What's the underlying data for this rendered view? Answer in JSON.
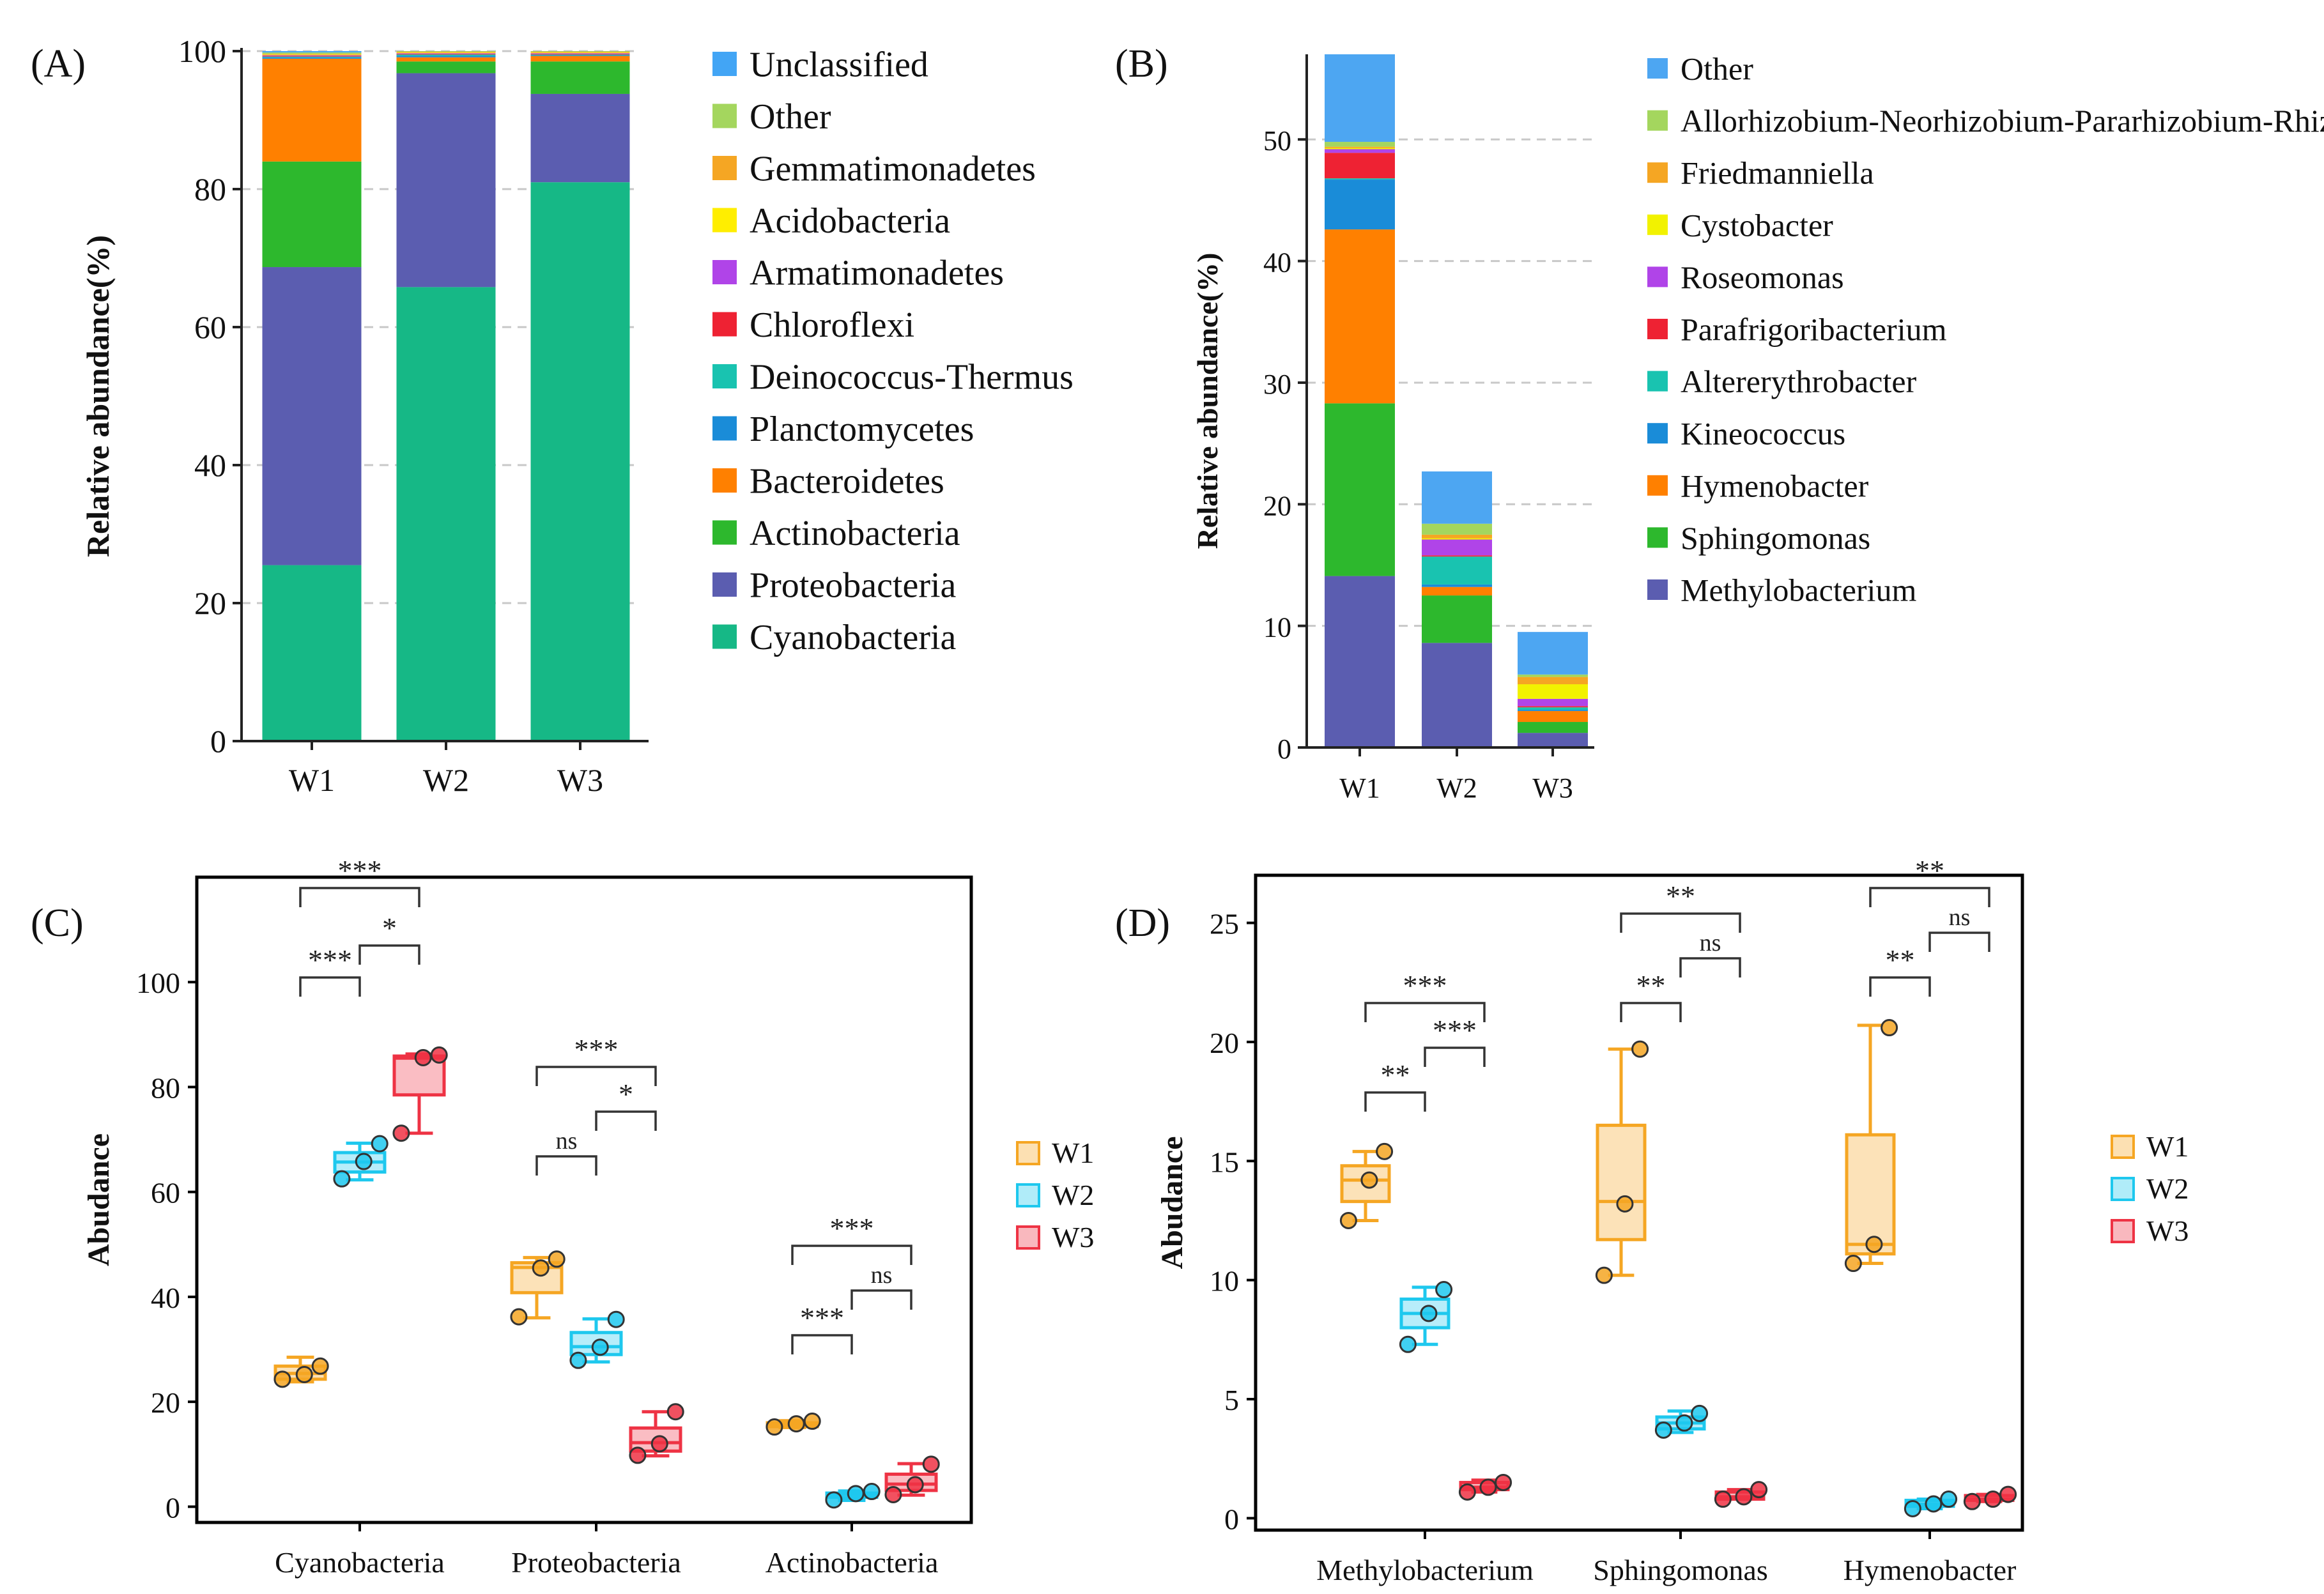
{
  "colors": {
    "Unclassified": "#42a5f5",
    "Other": "#a4d65e",
    "Gemmatimonadetes": "#f5a623",
    "Acidobacteria": "#ffee00",
    "Armatimonadetes": "#b044e8",
    "Chloroflexi": "#ee2233",
    "Deinococcus-Thermus": "#19c3b0",
    "Planctomycetes": "#1a8cd8",
    "Bacteroidetes": "#ff8000",
    "Actinobacteria": "#2db82d",
    "Proteobacteria": "#5b5db0",
    "Cyanobacteria": "#16b886",
    "Other_B": "#4da6f2",
    "Allorhizobium": "#a4d65e",
    "Friedmanniella": "#f5a623",
    "Cystobacter": "#f2f200",
    "Roseomonas": "#b044e8",
    "Parafrigoribacterium": "#ee2233",
    "Altererythrobacter": "#19c3b0",
    "Kineococcus": "#1a8cd8",
    "Hymenobacter": "#ff8000",
    "Sphingomonas": "#2db82d",
    "Methylobacterium": "#5b5db0",
    "W1": "#f5a623",
    "W2": "#1ec8ee",
    "W3": "#ee3344"
  },
  "chart_data": [
    {
      "panel": "(A)",
      "type": "bar",
      "stacked": true,
      "categories": [
        "W1",
        "W2",
        "W3"
      ],
      "ylabel": "Relative abundance(%)",
      "ylim": [
        0,
        100
      ],
      "yticks": [
        "0",
        "20",
        "40",
        "60",
        "80",
        "100"
      ],
      "series": [
        {
          "name": "Cyanobacteria",
          "values": [
            25.5,
            65.8,
            81.0
          ]
        },
        {
          "name": "Proteobacteria",
          "values": [
            43.2,
            31.0,
            12.8
          ]
        },
        {
          "name": "Actinobacteria",
          "values": [
            15.3,
            1.7,
            4.7
          ]
        },
        {
          "name": "Bacteroidetes",
          "values": [
            14.9,
            0.6,
            0.8
          ]
        },
        {
          "name": "Planctomycetes",
          "values": [
            0.2,
            0.2,
            0.1
          ]
        },
        {
          "name": "Deinococcus-Thermus",
          "values": [
            0.1,
            0.2,
            0.1
          ]
        },
        {
          "name": "Chloroflexi",
          "values": [
            0.1,
            0.1,
            0.1
          ]
        },
        {
          "name": "Armatimonadetes",
          "values": [
            0.1,
            0.1,
            0.1
          ]
        },
        {
          "name": "Acidobacteria",
          "values": [
            0.1,
            0.1,
            0.1
          ]
        },
        {
          "name": "Gemmatimonadetes",
          "values": [
            0.1,
            0.1,
            0.1
          ]
        },
        {
          "name": "Other",
          "values": [
            0.2,
            0.1,
            0.1
          ]
        },
        {
          "name": "Unclassified",
          "values": [
            0.2,
            0.0,
            0.0
          ]
        }
      ],
      "legend": [
        "Unclassified",
        "Other",
        "Gemmatimonadetes",
        "Acidobacteria",
        "Armatimonadetes",
        "Chloroflexi",
        "Deinococcus-Thermus",
        "Planctomycetes",
        "Bacteroidetes",
        "Actinobacteria",
        "Proteobacteria",
        "Cyanobacteria"
      ]
    },
    {
      "panel": "(B)",
      "type": "bar",
      "stacked": true,
      "categories": [
        "W1",
        "W2",
        "W3"
      ],
      "ylabel": "Relative abundance(%)",
      "ylim": [
        0,
        57
      ],
      "yticks": [
        "0",
        "10",
        "20",
        "30",
        "40",
        "50"
      ],
      "series": [
        {
          "name": "Methylobacterium",
          "key": "Methylobacterium",
          "values": [
            14.1,
            8.6,
            1.2
          ]
        },
        {
          "name": "Sphingomonas",
          "key": "Sphingomonas",
          "values": [
            14.2,
            3.9,
            0.9
          ]
        },
        {
          "name": "Hymenobacter",
          "key": "Hymenobacter",
          "values": [
            14.3,
            0.7,
            0.9
          ]
        },
        {
          "name": "Kineococcus",
          "key": "Kineococcus",
          "values": [
            4.1,
            0.2,
            0.1
          ]
        },
        {
          "name": "Altererythrobacter",
          "key": "Altererythrobacter",
          "values": [
            0.1,
            2.3,
            0.2
          ]
        },
        {
          "name": "Parafrigoribacterium",
          "key": "Parafrigoribacterium",
          "values": [
            2.1,
            0.1,
            0.1
          ]
        },
        {
          "name": "Roseomonas",
          "key": "Roseomonas",
          "values": [
            0.3,
            1.3,
            0.6
          ]
        },
        {
          "name": "Cystobacter",
          "key": "Cystobacter",
          "values": [
            0.1,
            0.1,
            1.2
          ]
        },
        {
          "name": "Friedmanniella",
          "key": "Friedmanniella",
          "values": [
            0.1,
            0.3,
            0.6
          ]
        },
        {
          "name": "Allorhizobium-Neorhizobium-Pararhizobium-Rhizobium",
          "key": "Allorhizobium",
          "values": [
            0.4,
            0.9,
            0.2
          ]
        },
        {
          "name": "Other",
          "key": "Other_B",
          "values": [
            7.2,
            4.3,
            3.5
          ]
        }
      ],
      "legend": [
        {
          "name": "Other",
          "key": "Other_B"
        },
        {
          "name": "Allorhizobium-Neorhizobium-Pararhizobium-Rhizobium",
          "key": "Allorhizobium"
        },
        {
          "name": "Friedmanniella",
          "key": "Friedmanniella"
        },
        {
          "name": "Cystobacter",
          "key": "Cystobacter"
        },
        {
          "name": "Roseomonas",
          "key": "Roseomonas"
        },
        {
          "name": "Parafrigoribacterium",
          "key": "Parafrigoribacterium"
        },
        {
          "name": "Altererythrobacter",
          "key": "Altererythrobacter"
        },
        {
          "name": "Kineococcus",
          "key": "Kineococcus"
        },
        {
          "name": "Hymenobacter",
          "key": "Hymenobacter"
        },
        {
          "name": "Sphingomonas",
          "key": "Sphingomonas"
        },
        {
          "name": "Methylobacterium",
          "key": "Methylobacterium"
        }
      ]
    },
    {
      "panel": "(C)",
      "type": "box",
      "ylabel": "Abudance",
      "ylim": [
        -3,
        120
      ],
      "yticks": [
        "0",
        "20",
        "40",
        "60",
        "80",
        "100"
      ],
      "groups": [
        "Cyanobacteria",
        "Proteobacteria",
        "Actinobacteria"
      ],
      "samples": [
        "W1",
        "W2",
        "W3"
      ],
      "boxes": [
        [
          {
            "min": 23.8,
            "q1": 24.3,
            "median": 25.4,
            "q3": 26.8,
            "max": 28.5,
            "points": [
              24.3,
              25.2,
              26.8
            ]
          },
          {
            "min": 62.3,
            "q1": 63.8,
            "median": 65.7,
            "q3": 67.5,
            "max": 69.3,
            "points": [
              62.5,
              65.8,
              69.2
            ]
          },
          {
            "min": 71.2,
            "q1": 78.5,
            "median": 85.5,
            "q3": 85.9,
            "max": 86.3,
            "points": [
              71.2,
              85.6,
              86.1
            ]
          }
        ],
        [
          {
            "min": 36.0,
            "q1": 40.8,
            "median": 45.6,
            "q3": 46.5,
            "max": 47.5,
            "points": [
              36.2,
              45.5,
              47.2
            ]
          },
          {
            "min": 27.6,
            "q1": 29.0,
            "median": 30.5,
            "q3": 33.2,
            "max": 35.8,
            "points": [
              27.9,
              30.4,
              35.7
            ]
          },
          {
            "min": 9.7,
            "q1": 10.6,
            "median": 12.2,
            "q3": 15.0,
            "max": 18.1,
            "points": [
              9.8,
              12.0,
              18.1
            ]
          }
        ],
        [
          {
            "min": 15.1,
            "q1": 15.3,
            "median": 15.7,
            "q3": 16.0,
            "max": 16.4,
            "points": [
              15.2,
              15.8,
              16.3
            ]
          },
          {
            "min": 1.2,
            "q1": 1.8,
            "median": 2.4,
            "q3": 2.6,
            "max": 3.0,
            "points": [
              1.3,
              2.5,
              2.9
            ]
          },
          {
            "min": 2.2,
            "q1": 3.1,
            "median": 4.3,
            "q3": 6.2,
            "max": 8.2,
            "points": [
              2.3,
              4.2,
              8.1
            ]
          }
        ]
      ],
      "brackets": [
        {
          "group": 0,
          "from": 0,
          "to": 1,
          "level": 0,
          "label": "***"
        },
        {
          "group": 0,
          "from": 1,
          "to": 2,
          "level": 1,
          "label": "*"
        },
        {
          "group": 0,
          "from": 0,
          "to": 2,
          "level": 2,
          "label": "***"
        },
        {
          "group": 1,
          "from": 0,
          "to": 1,
          "level": 0,
          "label": "ns"
        },
        {
          "group": 1,
          "from": 1,
          "to": 2,
          "level": 1,
          "label": "*"
        },
        {
          "group": 1,
          "from": 0,
          "to": 2,
          "level": 2,
          "label": "***"
        },
        {
          "group": 2,
          "from": 0,
          "to": 1,
          "level": 0,
          "label": "***"
        },
        {
          "group": 2,
          "from": 1,
          "to": 2,
          "level": 1,
          "label": "ns"
        },
        {
          "group": 2,
          "from": 0,
          "to": 2,
          "level": 2,
          "label": "***"
        }
      ]
    },
    {
      "panel": "(D)",
      "type": "box",
      "ylabel": "Abudance",
      "ylim": [
        -0.5,
        27
      ],
      "yticks": [
        "0",
        "5",
        "10",
        "15",
        "20",
        "25"
      ],
      "groups": [
        "Methylobacterium",
        "Sphingomonas",
        "Hymenobacter"
      ],
      "samples": [
        "W1",
        "W2",
        "W3"
      ],
      "boxes": [
        [
          {
            "min": 12.5,
            "q1": 13.3,
            "median": 14.2,
            "q3": 14.8,
            "max": 15.4,
            "points": [
              12.5,
              14.2,
              15.4
            ]
          },
          {
            "min": 7.3,
            "q1": 8.0,
            "median": 8.6,
            "q3": 9.2,
            "max": 9.7,
            "points": [
              7.3,
              8.6,
              9.6
            ]
          },
          {
            "min": 1.1,
            "q1": 1.2,
            "median": 1.3,
            "q3": 1.5,
            "max": 1.6,
            "points": [
              1.1,
              1.3,
              1.5
            ]
          }
        ],
        [
          {
            "min": 10.2,
            "q1": 11.7,
            "median": 13.3,
            "q3": 16.5,
            "max": 19.7,
            "points": [
              10.2,
              13.2,
              19.7
            ]
          },
          {
            "min": 3.6,
            "q1": 3.75,
            "median": 4.0,
            "q3": 4.25,
            "max": 4.5,
            "points": [
              3.7,
              4.0,
              4.4
            ]
          },
          {
            "min": 0.8,
            "q1": 0.8,
            "median": 0.9,
            "q3": 1.1,
            "max": 1.2,
            "points": [
              0.8,
              0.9,
              1.2
            ]
          }
        ],
        [
          {
            "min": 10.7,
            "q1": 11.1,
            "median": 11.5,
            "q3": 16.1,
            "max": 20.7,
            "points": [
              10.7,
              11.5,
              20.6
            ]
          },
          {
            "min": 0.4,
            "q1": 0.5,
            "median": 0.6,
            "q3": 0.75,
            "max": 0.8,
            "points": [
              0.4,
              0.6,
              0.8
            ]
          },
          {
            "min": 0.7,
            "q1": 0.75,
            "median": 0.8,
            "q3": 0.95,
            "max": 1.0,
            "points": [
              0.7,
              0.8,
              1.0
            ]
          }
        ]
      ],
      "brackets": [
        {
          "group": 0,
          "from": 0,
          "to": 1,
          "level": 0,
          "label": "**"
        },
        {
          "group": 0,
          "from": 1,
          "to": 2,
          "level": 1,
          "label": "***"
        },
        {
          "group": 0,
          "from": 0,
          "to": 2,
          "level": 2,
          "label": "***"
        },
        {
          "group": 1,
          "from": 0,
          "to": 1,
          "level": 0,
          "label": "**"
        },
        {
          "group": 1,
          "from": 1,
          "to": 2,
          "level": 1,
          "label": "ns"
        },
        {
          "group": 1,
          "from": 0,
          "to": 2,
          "level": 2,
          "label": "**"
        },
        {
          "group": 2,
          "from": 0,
          "to": 1,
          "level": 0,
          "label": "**"
        },
        {
          "group": 2,
          "from": 1,
          "to": 2,
          "level": 1,
          "label": "ns"
        },
        {
          "group": 2,
          "from": 0,
          "to": 2,
          "level": 2,
          "label": "**"
        }
      ]
    }
  ]
}
